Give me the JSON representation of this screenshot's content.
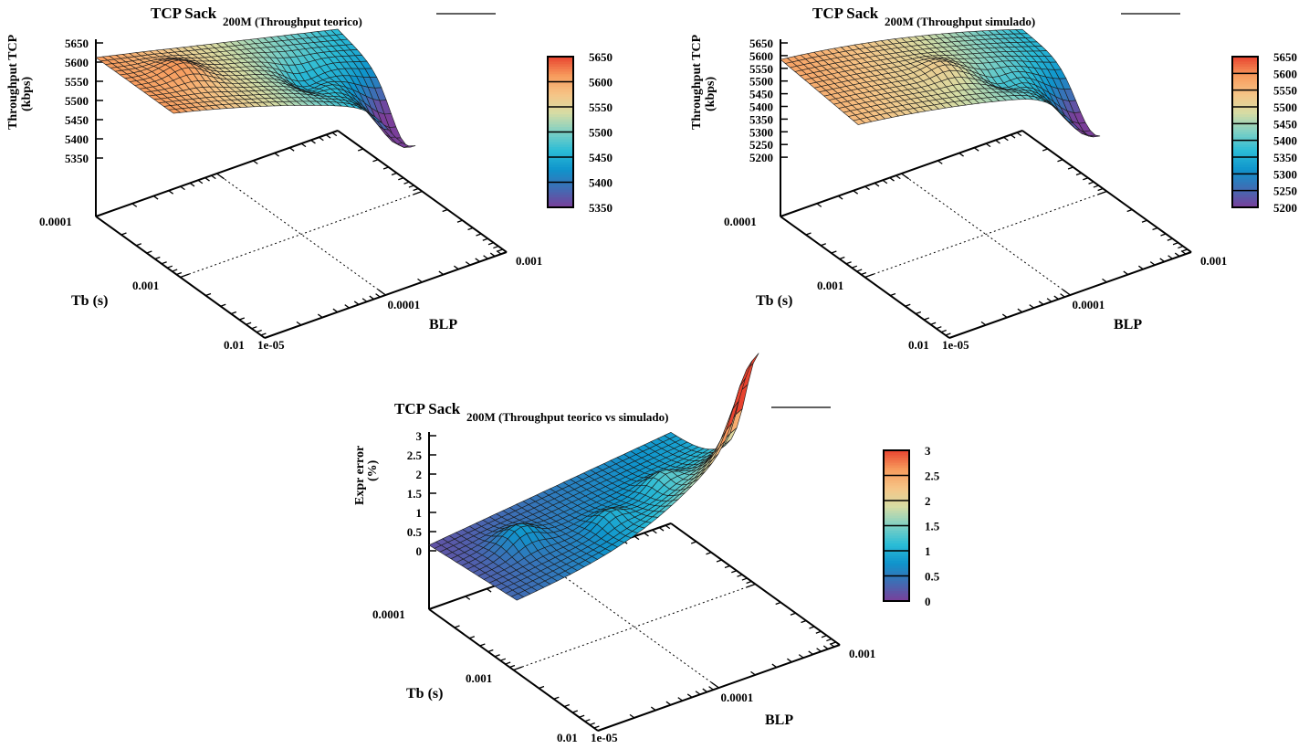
{
  "chart_data": [
    {
      "type": "surface3d",
      "title": "TCP Sack",
      "title_subscript": "200M (Throughput teorico)",
      "zlabel_line1": "Throughput TCP",
      "zlabel_line2": "(kbps)",
      "xlabel": "Tb (s)",
      "ylabel": "BLP",
      "x_ticks": [
        "0.0001",
        "0.001",
        "0.01"
      ],
      "y_ticks": [
        "1e-05",
        "0.0001",
        "0.001"
      ],
      "z_ticks": [
        "5650",
        "5600",
        "5550",
        "5500",
        "5450",
        "5400",
        "5350"
      ],
      "zlim": [
        5350,
        5650
      ],
      "colorbar_ticks": [
        "5650",
        "5600",
        "5550",
        "5500",
        "5450",
        "5400",
        "5350"
      ],
      "cblim": [
        5350,
        5650
      ],
      "surface_z_range": [
        5390,
        5615
      ]
    },
    {
      "type": "surface3d",
      "title": "TCP Sack",
      "title_subscript": "200M (Throughput simulado)",
      "zlabel_line1": "Throughput TCP",
      "zlabel_line2": "(kbps)",
      "xlabel": "Tb (s)",
      "ylabel": "BLP",
      "x_ticks": [
        "0.0001",
        "0.001",
        "0.01"
      ],
      "y_ticks": [
        "1e-05",
        "0.0001",
        "0.001"
      ],
      "z_ticks": [
        "5650",
        "5600",
        "5550",
        "5500",
        "5450",
        "5400",
        "5350",
        "5300",
        "5250",
        "5200"
      ],
      "zlim": [
        5200,
        5650
      ],
      "colorbar_ticks": [
        "5650",
        "5600",
        "5550",
        "5500",
        "5450",
        "5400",
        "5350",
        "5300",
        "5250",
        "5200"
      ],
      "cblim": [
        5200,
        5650
      ],
      "surface_z_range": [
        5210,
        5590
      ]
    },
    {
      "type": "surface3d",
      "title": "TCP Sack",
      "title_subscript": "200M (Throughput teorico vs simulado)",
      "zlabel_line1": "Expr error",
      "zlabel_line2": "(%)",
      "xlabel": "Tb (s)",
      "ylabel": "BLP",
      "x_ticks": [
        "0.0001",
        "0.001",
        "0.01"
      ],
      "y_ticks": [
        "1e-05",
        "0.0001",
        "0.001"
      ],
      "z_ticks": [
        "3",
        "2.5",
        "2",
        "1.5",
        "1",
        "0.5",
        "0"
      ],
      "zlim": [
        0,
        3
      ],
      "colorbar_ticks": [
        "3",
        "2.5",
        "2",
        "1.5",
        "1",
        "0.5",
        "0"
      ],
      "cblim": [
        0,
        3
      ],
      "surface_z_range": [
        0.1,
        3.0
      ]
    }
  ],
  "palette": [
    "#7a3f9a",
    "#3f6db4",
    "#0f94cc",
    "#2bbcd6",
    "#7fd0c4",
    "#d6dca4",
    "#f6c486",
    "#f79a5c",
    "#e8432f"
  ]
}
